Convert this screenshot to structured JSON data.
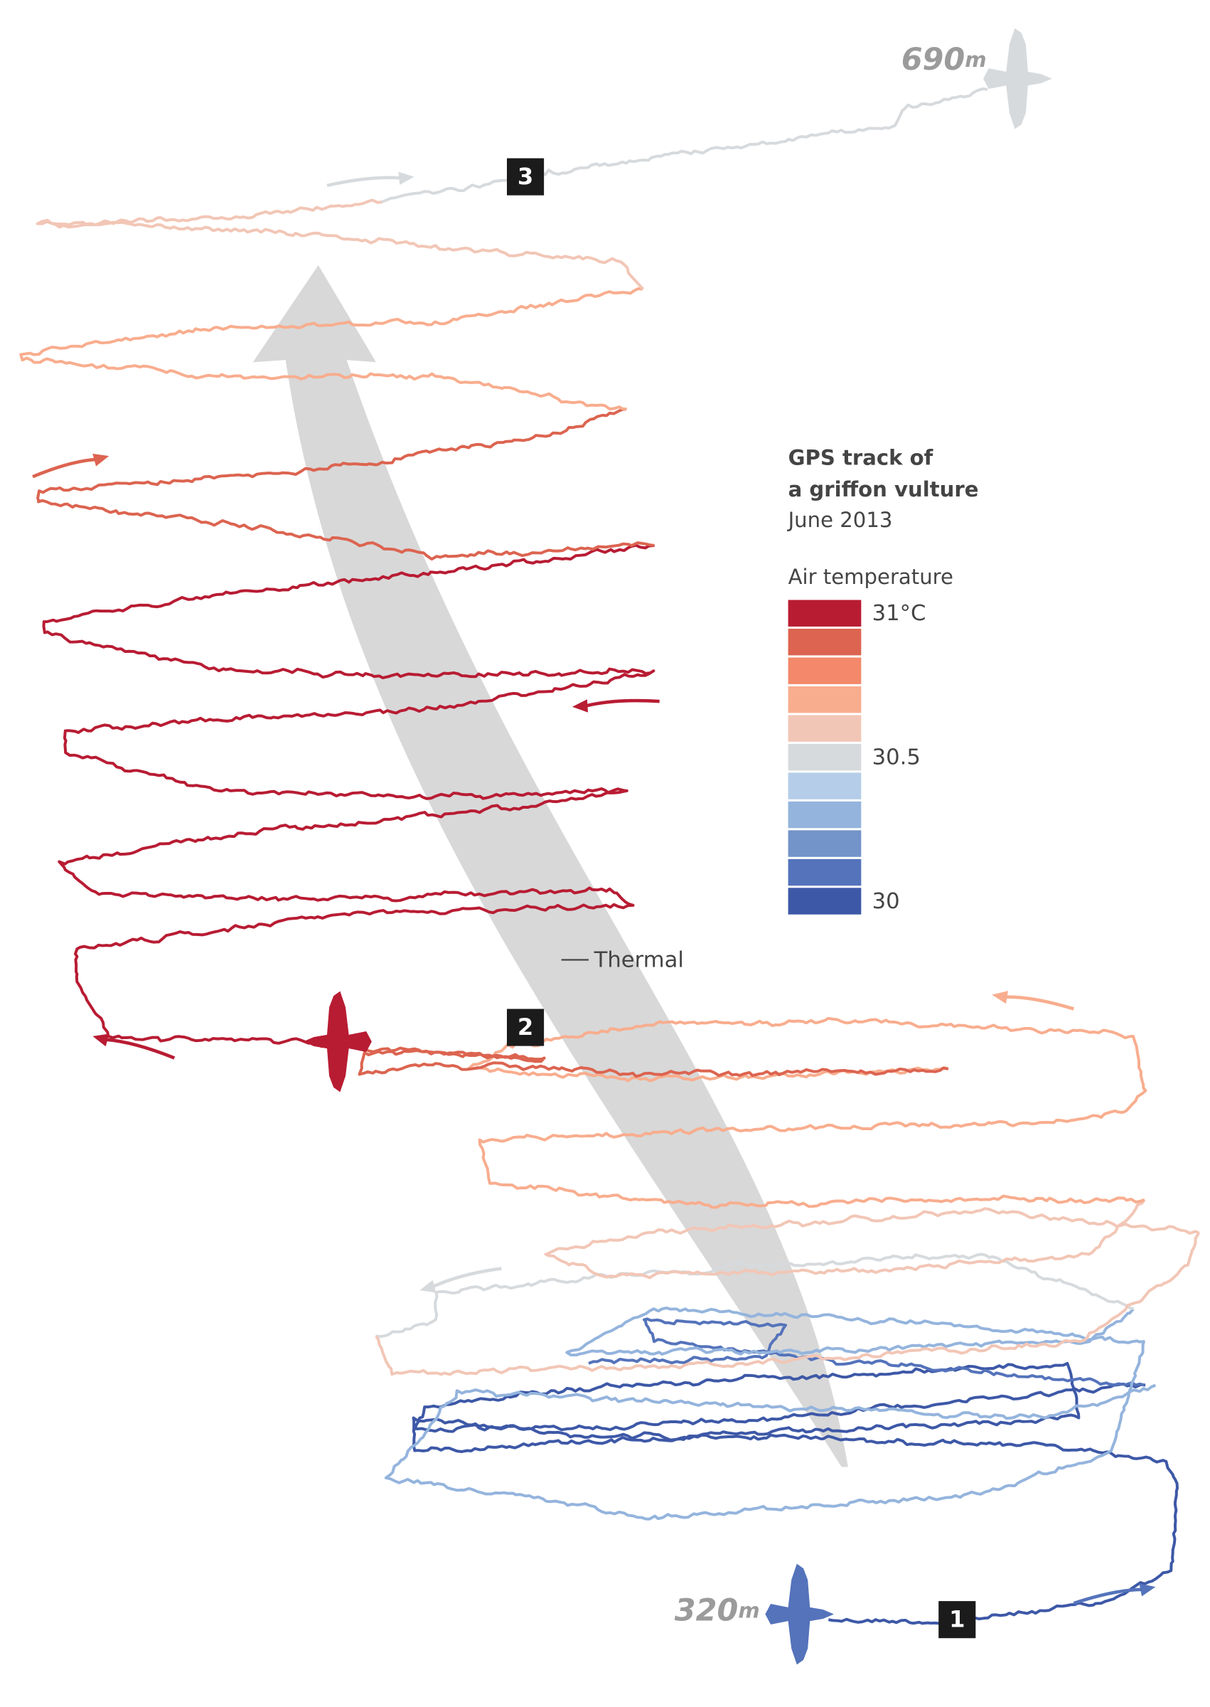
{
  "altitude": {
    "end": {
      "value": "690",
      "unit": "m"
    },
    "start": {
      "value": "320",
      "unit": "m"
    }
  },
  "waypoints": [
    "1",
    "2",
    "3"
  ],
  "legend": {
    "title": [
      "GPS track of",
      "a griffon vulture"
    ],
    "date": "June 2013",
    "scale_title": "Air temperature",
    "colors": [
      "#b81c33",
      "#dc6450",
      "#f3896a",
      "#f8ad8e",
      "#f2c6b6",
      "#d7dadd",
      "#b5cde8",
      "#94b4dd",
      "#7394c9",
      "#5473bb",
      "#3d58a7"
    ],
    "labels": [
      "31°C",
      "30.5",
      "30"
    ]
  },
  "thermal_label": "Thermal"
}
